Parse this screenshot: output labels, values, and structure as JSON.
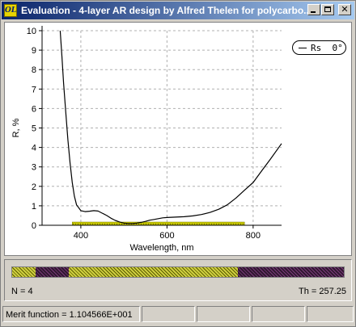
{
  "window": {
    "title": "Evaluation - 4-layer AR design by Alfred Thelen for polycarbo...",
    "logo_text": "OL",
    "controls": {
      "minimize": "minimize-icon",
      "maximize": "maximize-icon",
      "close": "✕"
    }
  },
  "chart_data": {
    "type": "line",
    "xlabel": "Wavelength, nm",
    "ylabel": "R, %",
    "xlim": [
      310,
      866
    ],
    "ylim": [
      0,
      10
    ],
    "xticks": [
      400,
      600,
      800
    ],
    "yticks": [
      0,
      1,
      2,
      3,
      4,
      5,
      6,
      7,
      8,
      9,
      10
    ],
    "grid": true,
    "legend": {
      "placement": "top-right",
      "label": "Rs  0°"
    },
    "target_band": {
      "x": [
        380,
        780
      ],
      "y": 0,
      "color": "#c8c800"
    },
    "series": [
      {
        "name": "Rs  0°",
        "color": "#000000",
        "x": [
          352,
          356,
          360,
          365,
          370,
          375,
          380,
          385,
          390,
          400,
          410,
          420,
          430,
          440,
          450,
          460,
          470,
          480,
          490,
          500,
          510,
          520,
          530,
          540,
          550,
          560,
          570,
          580,
          590,
          600,
          620,
          640,
          660,
          680,
          700,
          720,
          740,
          760,
          780,
          800,
          820,
          840,
          866
        ],
        "y": [
          10.0,
          8.7,
          7.3,
          5.8,
          4.4,
          3.2,
          2.2,
          1.5,
          1.05,
          0.75,
          0.7,
          0.72,
          0.75,
          0.73,
          0.62,
          0.5,
          0.36,
          0.25,
          0.17,
          0.11,
          0.09,
          0.09,
          0.11,
          0.15,
          0.2,
          0.26,
          0.3,
          0.34,
          0.38,
          0.4,
          0.42,
          0.44,
          0.48,
          0.55,
          0.66,
          0.82,
          1.05,
          1.4,
          1.8,
          2.2,
          2.8,
          3.4,
          4.2
        ]
      }
    ]
  },
  "design": {
    "colors": {
      "high": "#cfcf40",
      "low": "#301830"
    },
    "layers": [
      {
        "type": "high",
        "fraction": 0.07
      },
      {
        "type": "low",
        "fraction": 0.1
      },
      {
        "type": "high",
        "fraction": 0.51
      },
      {
        "type": "low",
        "fraction": 0.32
      }
    ],
    "n_label": "N = 4",
    "th_label": "Th = 257.25"
  },
  "status": {
    "merit_text": "Merit function =  1.104566E+001"
  }
}
